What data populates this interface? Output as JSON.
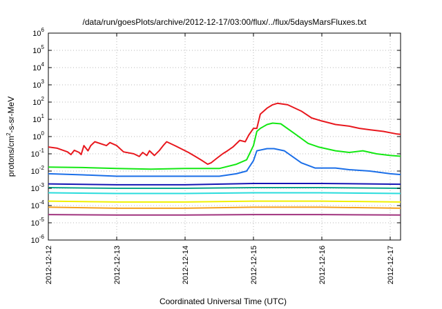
{
  "chart_data": {
    "type": "line",
    "title": "/data/run/goesPlots/archive/2012-12-17/03:00/flux/../flux/5daysMarsFluxes.txt",
    "xlabel": "Coordinated Universal Time (UTC)",
    "ylabel": {
      "base": "protons/cm",
      "sup": "2",
      "rest": "-s-sr-MeV"
    },
    "y_scale": "log",
    "ylim": [
      1e-06,
      1000000.0
    ],
    "y_ticks": [
      {
        "base": "10",
        "exp": "-6",
        "value": 1e-06
      },
      {
        "base": "10",
        "exp": "-5",
        "value": 1e-05
      },
      {
        "base": "10",
        "exp": "-4",
        "value": 0.0001
      },
      {
        "base": "10",
        "exp": "-3",
        "value": 0.001
      },
      {
        "base": "10",
        "exp": "-2",
        "value": 0.01
      },
      {
        "base": "10",
        "exp": "-1",
        "value": 0.1
      },
      {
        "base": "10",
        "exp": "0",
        "value": 1
      },
      {
        "base": "10",
        "exp": "1",
        "value": 10
      },
      {
        "base": "10",
        "exp": "2",
        "value": 100
      },
      {
        "base": "10",
        "exp": "3",
        "value": 1000
      },
      {
        "base": "10",
        "exp": "4",
        "value": 10000
      },
      {
        "base": "10",
        "exp": "5",
        "value": 100000
      },
      {
        "base": "10",
        "exp": "6",
        "value": 1000000
      }
    ],
    "x_range": [
      "2012-12-12 00:00",
      "2012-12-17 04:48"
    ],
    "x_ticks": [
      {
        "label": "2012-12-12",
        "value": "2012-12-12 00:00"
      },
      {
        "label": "2012-12-13",
        "value": "2012-12-13 00:00"
      },
      {
        "label": "2012-12-14",
        "value": "2012-12-14 00:00"
      },
      {
        "label": "2012-12-15",
        "value": "2012-12-15 00:00"
      },
      {
        "label": "2012-12-16",
        "value": "2012-12-16 00:00"
      },
      {
        "label": "2012-12-17",
        "value": "2012-12-17 00:00"
      }
    ],
    "grid": true,
    "series": [
      {
        "color": "#e8171d",
        "values": [
          [
            0.0,
            0.25
          ],
          [
            0.13,
            0.21
          ],
          [
            0.28,
            0.13
          ],
          [
            0.33,
            0.09
          ],
          [
            0.38,
            0.16
          ],
          [
            0.45,
            0.12
          ],
          [
            0.48,
            0.09
          ],
          [
            0.52,
            0.3
          ],
          [
            0.58,
            0.15
          ],
          [
            0.62,
            0.3
          ],
          [
            0.68,
            0.5
          ],
          [
            0.85,
            0.3
          ],
          [
            0.9,
            0.45
          ],
          [
            1.0,
            0.3
          ],
          [
            1.1,
            0.13
          ],
          [
            1.25,
            0.1
          ],
          [
            1.33,
            0.07
          ],
          [
            1.38,
            0.12
          ],
          [
            1.44,
            0.08
          ],
          [
            1.48,
            0.15
          ],
          [
            1.55,
            0.08
          ],
          [
            1.62,
            0.15
          ],
          [
            1.68,
            0.3
          ],
          [
            1.73,
            0.5
          ],
          [
            1.85,
            0.3
          ],
          [
            2.05,
            0.12
          ],
          [
            2.15,
            0.07
          ],
          [
            2.25,
            0.04
          ],
          [
            2.33,
            0.025
          ],
          [
            2.38,
            0.03
          ],
          [
            2.45,
            0.05
          ],
          [
            2.55,
            0.1
          ],
          [
            2.62,
            0.15
          ],
          [
            2.7,
            0.25
          ],
          [
            2.8,
            0.6
          ],
          [
            2.88,
            0.5
          ],
          [
            2.93,
            1.2
          ],
          [
            3.0,
            3
          ],
          [
            3.05,
            3
          ],
          [
            3.1,
            20
          ],
          [
            3.2,
            45
          ],
          [
            3.28,
            70
          ],
          [
            3.35,
            85
          ],
          [
            3.5,
            70
          ],
          [
            3.7,
            30
          ],
          [
            3.85,
            12
          ],
          [
            4.0,
            8
          ],
          [
            4.2,
            5
          ],
          [
            4.4,
            4
          ],
          [
            4.55,
            3
          ],
          [
            4.7,
            2.5
          ],
          [
            4.9,
            2
          ],
          [
            5.1,
            1.4
          ],
          [
            5.2,
            1.3
          ]
        ]
      },
      {
        "color": "#12e812",
        "values": [
          [
            0.0,
            0.017
          ],
          [
            0.5,
            0.016
          ],
          [
            1.0,
            0.014
          ],
          [
            1.5,
            0.013
          ],
          [
            2.0,
            0.014
          ],
          [
            2.5,
            0.014
          ],
          [
            2.75,
            0.025
          ],
          [
            2.9,
            0.045
          ],
          [
            3.0,
            0.3
          ],
          [
            3.05,
            2
          ],
          [
            3.1,
            3
          ],
          [
            3.2,
            5
          ],
          [
            3.28,
            6
          ],
          [
            3.4,
            5.5
          ],
          [
            3.6,
            1.5
          ],
          [
            3.8,
            0.4
          ],
          [
            3.95,
            0.25
          ],
          [
            4.2,
            0.15
          ],
          [
            4.4,
            0.12
          ],
          [
            4.6,
            0.15
          ],
          [
            4.8,
            0.1
          ],
          [
            5.0,
            0.08
          ],
          [
            5.2,
            0.07
          ]
        ]
      },
      {
        "color": "#1a6ee8",
        "values": [
          [
            0.0,
            0.007
          ],
          [
            0.5,
            0.006
          ],
          [
            1.0,
            0.005
          ],
          [
            1.5,
            0.005
          ],
          [
            2.0,
            0.005
          ],
          [
            2.5,
            0.005
          ],
          [
            2.75,
            0.007
          ],
          [
            2.9,
            0.01
          ],
          [
            3.0,
            0.04
          ],
          [
            3.05,
            0.15
          ],
          [
            3.2,
            0.2
          ],
          [
            3.3,
            0.2
          ],
          [
            3.45,
            0.15
          ],
          [
            3.7,
            0.03
          ],
          [
            3.9,
            0.015
          ],
          [
            4.2,
            0.015
          ],
          [
            4.4,
            0.012
          ],
          [
            4.7,
            0.01
          ],
          [
            5.0,
            0.007
          ],
          [
            5.2,
            0.006
          ]
        ]
      },
      {
        "color": "#1414b4",
        "values": [
          [
            0.0,
            0.0018
          ],
          [
            1.0,
            0.0016
          ],
          [
            2.0,
            0.0016
          ],
          [
            3.0,
            0.0019
          ],
          [
            4.0,
            0.0019
          ],
          [
            5.2,
            0.0017
          ]
        ]
      },
      {
        "color": "#0aa58c",
        "values": [
          [
            0.0,
            0.0011
          ],
          [
            1.0,
            0.001
          ],
          [
            2.0,
            0.001
          ],
          [
            3.0,
            0.0011
          ],
          [
            4.0,
            0.0011
          ],
          [
            5.2,
            0.001
          ]
        ]
      },
      {
        "color": "#28dcdc",
        "values": [
          [
            0.0,
            0.00055
          ],
          [
            1.0,
            0.0005
          ],
          [
            2.0,
            0.0005
          ],
          [
            3.0,
            0.00055
          ],
          [
            4.0,
            0.00055
          ],
          [
            5.2,
            0.0005
          ]
        ]
      },
      {
        "color": "#f0f000",
        "values": [
          [
            0.0,
            0.00018
          ],
          [
            1.0,
            0.00016
          ],
          [
            2.0,
            0.00016
          ],
          [
            3.0,
            0.00018
          ],
          [
            4.0,
            0.00018
          ],
          [
            5.2,
            0.00016
          ]
        ]
      },
      {
        "color": "#f5a01e",
        "values": [
          [
            0.0,
            8e-05
          ],
          [
            1.0,
            7e-05
          ],
          [
            2.0,
            7e-05
          ],
          [
            3.0,
            8e-05
          ],
          [
            4.0,
            8e-05
          ],
          [
            5.2,
            7e-05
          ]
        ]
      },
      {
        "color": "#a0327d",
        "values": [
          [
            0.0,
            3e-05
          ],
          [
            1.0,
            2.8e-05
          ],
          [
            2.0,
            2.8e-05
          ],
          [
            3.0,
            3e-05
          ],
          [
            4.0,
            3e-05
          ],
          [
            5.2,
            2.8e-05
          ]
        ]
      }
    ]
  }
}
